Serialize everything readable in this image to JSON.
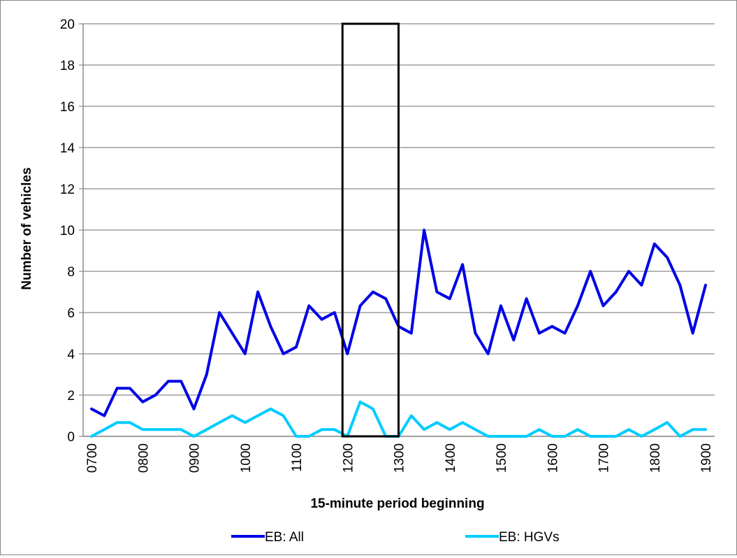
{
  "chart_data": {
    "type": "line",
    "xlabel": "15-minute period beginning",
    "ylabel": "Number of vehicles",
    "ylim": [
      0,
      20
    ],
    "y_ticks": [
      0,
      2,
      4,
      6,
      8,
      10,
      12,
      14,
      16,
      18,
      20
    ],
    "x_tick_labels": [
      "0700",
      "0800",
      "0900",
      "1000",
      "1100",
      "1200",
      "1300",
      "1400",
      "1500",
      "1600",
      "1700",
      "1800",
      "1900"
    ],
    "x_periods_count": 49,
    "grid": "horizontal",
    "legend_position": "bottom",
    "highlight_box": {
      "from_period": "1200",
      "to_period": "1300"
    },
    "series": [
      {
        "name": "EB: All",
        "color": "#0000e6",
        "values": [
          1.33,
          1.0,
          2.33,
          2.33,
          1.67,
          2.0,
          2.67,
          2.67,
          1.33,
          3.0,
          6.0,
          5.0,
          4.0,
          7.0,
          5.33,
          4.0,
          4.33,
          6.33,
          5.67,
          6.0,
          4.0,
          6.33,
          7.0,
          6.67,
          5.33,
          5.0,
          10.0,
          7.0,
          6.67,
          8.33,
          5.0,
          4.0,
          6.33,
          4.67,
          6.67,
          5.0,
          5.33,
          5.0,
          6.33,
          8.0,
          6.33,
          7.0,
          8.0,
          7.33,
          9.33,
          8.67,
          7.33,
          5.0,
          7.33
        ]
      },
      {
        "name": "EB: HGVs",
        "color": "#00ccff",
        "values": [
          0.0,
          0.33,
          0.67,
          0.67,
          0.33,
          0.33,
          0.33,
          0.33,
          0.0,
          0.33,
          0.67,
          1.0,
          0.67,
          1.0,
          1.33,
          1.0,
          0.0,
          0.0,
          0.33,
          0.33,
          0.0,
          1.67,
          1.33,
          0.0,
          0.0,
          1.0,
          0.33,
          0.67,
          0.33,
          0.67,
          0.33,
          0.0,
          0.0,
          0.0,
          0.0,
          0.33,
          0.0,
          0.0,
          0.33,
          0.0,
          0.0,
          0.0,
          0.33,
          0.0,
          0.33,
          0.67,
          0.0,
          0.33,
          0.33
        ]
      }
    ]
  }
}
